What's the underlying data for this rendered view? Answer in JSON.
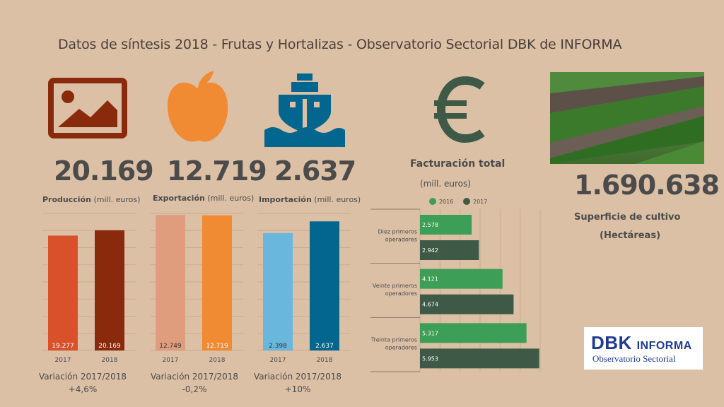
{
  "title": "Datos de síntesis 2018 -  Frutas y Hortalizas - Observatorio Sectorial DBK de INFORMA",
  "metrics": [
    {
      "icon": "image-icon",
      "value": "20.169",
      "label_bold": "Producción",
      "label_rest": " (mill. euros)",
      "variation_label": "Variación 2017/2018",
      "variation_value": "+4,6%"
    },
    {
      "icon": "apple-icon",
      "value": "12.719",
      "label_bold": "Exportación",
      "label_rest": " (mill. euros)",
      "variation_label": "Variación 2017/2018",
      "variation_value": "-0,2%"
    },
    {
      "icon": "ship-icon",
      "value": "2.637",
      "label_bold": "Importación",
      "label_rest": " (mill. euros)",
      "variation_label": "Variación 2017/2018",
      "variation_value": "+10%"
    }
  ],
  "facturacion": {
    "icon": "euro-icon",
    "title": "Facturación total",
    "subtitle": "(mill. euros)"
  },
  "superficie": {
    "value": "1.690.638",
    "label": "Superficie de cultivo",
    "unit": "(Hectáreas)"
  },
  "logo": {
    "main": "DBK",
    "suffix": "INFORMA",
    "sub": "Observatorio Sectorial"
  },
  "colors": {
    "background": "#dcc0a6",
    "produccion_2017": "#d9512b",
    "produccion_2018": "#8a2a0c",
    "exportacion_2017": "#df9d7d",
    "exportacion_2018": "#f08a33",
    "importacion_2017": "#6ab7dd",
    "importacion_2018": "#03668f",
    "fact_2016": "#3d9e57",
    "fact_2017": "#3e5a47",
    "icon_brown": "#8a2a0c",
    "icon_orange": "#f08a33",
    "icon_blue": "#03668f",
    "icon_green": "#3e5a47"
  },
  "chart_data": [
    {
      "type": "bar",
      "title": "Producción",
      "categories": [
        "2017",
        "2018"
      ],
      "values": [
        19277,
        20169
      ],
      "value_labels": [
        "19.277",
        "20.169"
      ],
      "ylim": [
        0,
        23000
      ],
      "grid": true
    },
    {
      "type": "bar",
      "title": "Exportación",
      "categories": [
        "2017",
        "2018"
      ],
      "values": [
        12749,
        12719
      ],
      "value_labels": [
        "12.749",
        "12.719"
      ],
      "ylim": [
        0,
        12900
      ],
      "grid": true
    },
    {
      "type": "bar",
      "title": "Importación",
      "categories": [
        "2017",
        "2018"
      ],
      "values": [
        2398,
        2637
      ],
      "value_labels": [
        "2.398",
        "2.637"
      ],
      "ylim": [
        0,
        2800
      ],
      "grid": true
    },
    {
      "type": "bar",
      "orientation": "horizontal",
      "title": "Facturación total",
      "categories": [
        "Diez primeros operadores",
        "Veinte primeros operadores",
        "Treinta primeros operadores"
      ],
      "category_lines": [
        [
          "Diez primeros",
          "operadores"
        ],
        [
          "Veinte primeros",
          "operadores"
        ],
        [
          "Treinta primeros",
          "operadores"
        ]
      ],
      "series": [
        {
          "name": "2016",
          "values": [
            2578,
            4121,
            5317
          ],
          "value_labels": [
            "2.578",
            "4.121",
            "5.317"
          ]
        },
        {
          "name": "2017",
          "values": [
            2942,
            4674,
            5953
          ],
          "value_labels": [
            "2.942",
            "4.674",
            "5.953"
          ]
        }
      ],
      "xlim": [
        0,
        6000
      ],
      "grid": true,
      "legend": "top"
    }
  ]
}
